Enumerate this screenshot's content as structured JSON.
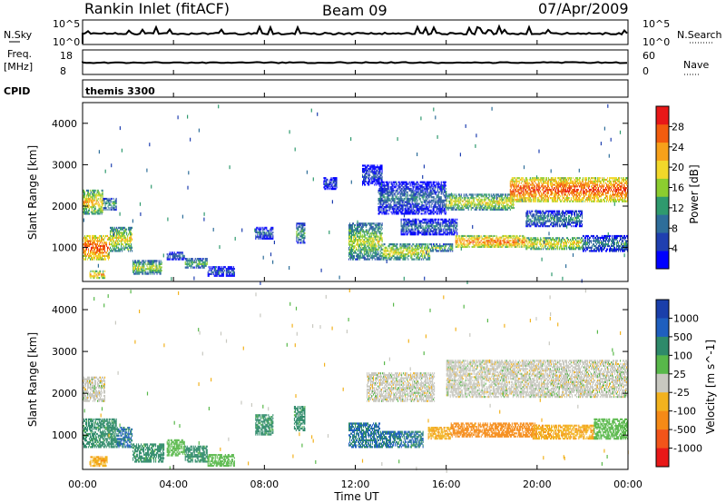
{
  "header": {
    "station": "Rankin Inlet (fitACF)",
    "beam": "Beam 09",
    "date": "07/Apr/2009"
  },
  "top_panels": {
    "nsky_label": "N.Sky",
    "nsky_ticks": [
      "10^5",
      "10^0"
    ],
    "nsearch_label": "N.Search",
    "nsearch_ticks": [
      "10^5",
      "10^0"
    ],
    "freq_label": "Freq.",
    "freq_unit": "[MHz]",
    "freq_ticks": [
      "18",
      "8"
    ],
    "nave_label": "Nave",
    "nave_ticks": [
      "60",
      "0"
    ],
    "cpid_label": "CPID",
    "cpid_text": "themis 3300"
  },
  "axes": {
    "xlabel": "Time UT",
    "ylabel": "Slant Range [km]",
    "x_ticks": [
      "00:00",
      "04:00",
      "08:00",
      "12:00",
      "16:00",
      "20:00",
      "00:00"
    ],
    "y_ticks": [
      "1000",
      "2000",
      "3000",
      "4000"
    ]
  },
  "power_scale": {
    "label": "Power [dB]",
    "ticks": [
      "28",
      "24",
      "20",
      "16",
      "12",
      "8",
      "4"
    ],
    "colors": [
      "#0000ff",
      "#1f3fb0",
      "#2e6e9a",
      "#2f9a6e",
      "#8ccd2f",
      "#f2d82a",
      "#f7a11a",
      "#f25c0e",
      "#e81818"
    ]
  },
  "velocity_scale": {
    "label": "Velocity [m s^-1]",
    "ticks": [
      "1000",
      "500",
      "100",
      "25",
      "-25",
      "-100",
      "-500",
      "-1000"
    ],
    "colors": [
      "#1a3faa",
      "#1f5fbf",
      "#2e8a6a",
      "#58b84a",
      "#c8c8c0",
      "#f2b21e",
      "#f58a16",
      "#f2541a",
      "#e81818"
    ]
  },
  "chart_data": [
    {
      "type": "heatmap",
      "name": "power",
      "title": "",
      "xlabel": "Time UT",
      "ylabel": "Slant Range [km]",
      "xlim": [
        0,
        24
      ],
      "ylim": [
        180,
        4500
      ],
      "colorbar": {
        "label": "Power [dB]",
        "range": [
          0,
          32
        ]
      },
      "regions": [
        {
          "t": [
            0.0,
            0.9
          ],
          "r": [
            1800,
            2400
          ],
          "v": 22
        },
        {
          "t": [
            0.9,
            1.5
          ],
          "r": [
            1900,
            2200
          ],
          "v": 14
        },
        {
          "t": [
            0.0,
            1.2
          ],
          "r": [
            700,
            1300
          ],
          "v": 28
        },
        {
          "t": [
            1.2,
            2.2
          ],
          "r": [
            900,
            1500
          ],
          "v": 20
        },
        {
          "t": [
            0.3,
            1.0
          ],
          "r": [
            250,
            450
          ],
          "v": 24
        },
        {
          "t": [
            2.2,
            3.5
          ],
          "r": [
            350,
            700
          ],
          "v": 18
        },
        {
          "t": [
            3.7,
            4.5
          ],
          "r": [
            700,
            900
          ],
          "v": 10
        },
        {
          "t": [
            4.5,
            5.5
          ],
          "r": [
            500,
            750
          ],
          "v": 16
        },
        {
          "t": [
            5.5,
            6.7
          ],
          "r": [
            300,
            550
          ],
          "v": 8
        },
        {
          "t": [
            7.6,
            8.4
          ],
          "r": [
            1200,
            1500
          ],
          "v": 10
        },
        {
          "t": [
            9.4,
            9.8
          ],
          "r": [
            1100,
            1600
          ],
          "v": 14
        },
        {
          "t": [
            10.6,
            11.2
          ],
          "r": [
            2400,
            2700
          ],
          "v": 8
        },
        {
          "t": [
            11.7,
            13.2
          ],
          "r": [
            700,
            1600
          ],
          "v": 18
        },
        {
          "t": [
            12.3,
            13.2
          ],
          "r": [
            2500,
            3000
          ],
          "v": 8
        },
        {
          "t": [
            13.0,
            16.0
          ],
          "r": [
            1800,
            2600
          ],
          "v": 10
        },
        {
          "t": [
            13.2,
            15.3
          ],
          "r": [
            700,
            1100
          ],
          "v": 20
        },
        {
          "t": [
            15.3,
            16.3
          ],
          "r": [
            900,
            1100
          ],
          "v": 16
        },
        {
          "t": [
            14.0,
            16.5
          ],
          "r": [
            1300,
            1700
          ],
          "v": 10
        },
        {
          "t": [
            16.0,
            19.0
          ],
          "r": [
            1900,
            2300
          ],
          "v": 20
        },
        {
          "t": [
            16.4,
            19.5
          ],
          "r": [
            1000,
            1300
          ],
          "v": 26
        },
        {
          "t": [
            19.5,
            22.0
          ],
          "r": [
            950,
            1250
          ],
          "v": 22
        },
        {
          "t": [
            18.8,
            24.0
          ],
          "r": [
            2100,
            2700
          ],
          "v": 28
        },
        {
          "t": [
            22.0,
            24.0
          ],
          "r": [
            900,
            1300
          ],
          "v": 12
        },
        {
          "t": [
            19.5,
            22.0
          ],
          "r": [
            1500,
            1900
          ],
          "v": 12
        }
      ]
    },
    {
      "type": "heatmap",
      "name": "velocity",
      "title": "",
      "xlabel": "Time UT",
      "ylabel": "Slant Range [km]",
      "xlim": [
        0,
        24
      ],
      "ylim": [
        180,
        4500
      ],
      "colorbar": {
        "label": "Velocity [m s^-1]",
        "levels": [
          1000,
          500,
          100,
          25,
          -25,
          -100,
          -500,
          -1000
        ]
      },
      "regions": [
        {
          "t": [
            0.0,
            1.0
          ],
          "r": [
            1800,
            2400
          ],
          "v": 0
        },
        {
          "t": [
            0.0,
            1.5
          ],
          "r": [
            700,
            1400
          ],
          "v": 150
        },
        {
          "t": [
            1.5,
            2.2
          ],
          "r": [
            700,
            1200
          ],
          "v": 300
        },
        {
          "t": [
            0.3,
            1.1
          ],
          "r": [
            250,
            500
          ],
          "v": -80
        },
        {
          "t": [
            2.2,
            3.6
          ],
          "r": [
            350,
            800
          ],
          "v": 150
        },
        {
          "t": [
            3.7,
            4.5
          ],
          "r": [
            500,
            900
          ],
          "v": 60
        },
        {
          "t": [
            4.5,
            5.5
          ],
          "r": [
            350,
            750
          ],
          "v": 150
        },
        {
          "t": [
            5.5,
            6.7
          ],
          "r": [
            250,
            550
          ],
          "v": 60
        },
        {
          "t": [
            7.6,
            8.4
          ],
          "r": [
            1000,
            1500
          ],
          "v": 150
        },
        {
          "t": [
            9.3,
            9.8
          ],
          "r": [
            1100,
            1700
          ],
          "v": 150
        },
        {
          "t": [
            11.7,
            13.1
          ],
          "r": [
            700,
            1300
          ],
          "v": 300
        },
        {
          "t": [
            12.5,
            15.5
          ],
          "r": [
            1800,
            2500
          ],
          "v": 0
        },
        {
          "t": [
            13.1,
            15.0
          ],
          "r": [
            700,
            1100
          ],
          "v": 300
        },
        {
          "t": [
            15.2,
            16.2
          ],
          "r": [
            900,
            1200
          ],
          "v": -80
        },
        {
          "t": [
            16.2,
            20.0
          ],
          "r": [
            950,
            1300
          ],
          "v": -300
        },
        {
          "t": [
            16.0,
            24.0
          ],
          "r": [
            1900,
            2800
          ],
          "v": 0
        },
        {
          "t": [
            19.8,
            22.5
          ],
          "r": [
            900,
            1250
          ],
          "v": -80
        },
        {
          "t": [
            22.5,
            24.0
          ],
          "r": [
            900,
            1400
          ],
          "v": 60
        }
      ]
    }
  ]
}
